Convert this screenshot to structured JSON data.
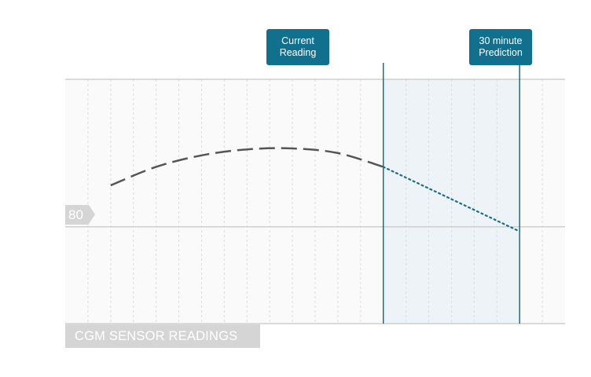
{
  "chart_data": {
    "type": "line",
    "y_tick_labels": [
      "80"
    ],
    "markers": [
      {
        "label_lines": [
          "Current",
          "Reading"
        ]
      },
      {
        "label_lines": [
          "30 minute",
          "Prediction"
        ]
      }
    ],
    "series": [
      {
        "style": "dashed",
        "x": [
          -60,
          -50,
          -40,
          -30,
          -20,
          -10,
          0
        ],
        "y": [
          89,
          93,
          95.5,
          96.8,
          97,
          96,
          93
        ]
      },
      {
        "style": "dotted",
        "x": [
          0,
          30
        ],
        "y": [
          93,
          79
        ]
      }
    ],
    "xlim": [
      -70,
      40
    ],
    "ylim": [
      59,
      112
    ],
    "footer_label": "CGM SENSOR READINGS",
    "colors": {
      "historical_line": "#555555",
      "prediction_line": "#1a6e8a",
      "marker": "#12708f",
      "prediction_band": "#edf3f7",
      "plot_background": "#fafafa",
      "gridline": "#cfcfcf",
      "label_gray": "#d5d5d5"
    }
  }
}
